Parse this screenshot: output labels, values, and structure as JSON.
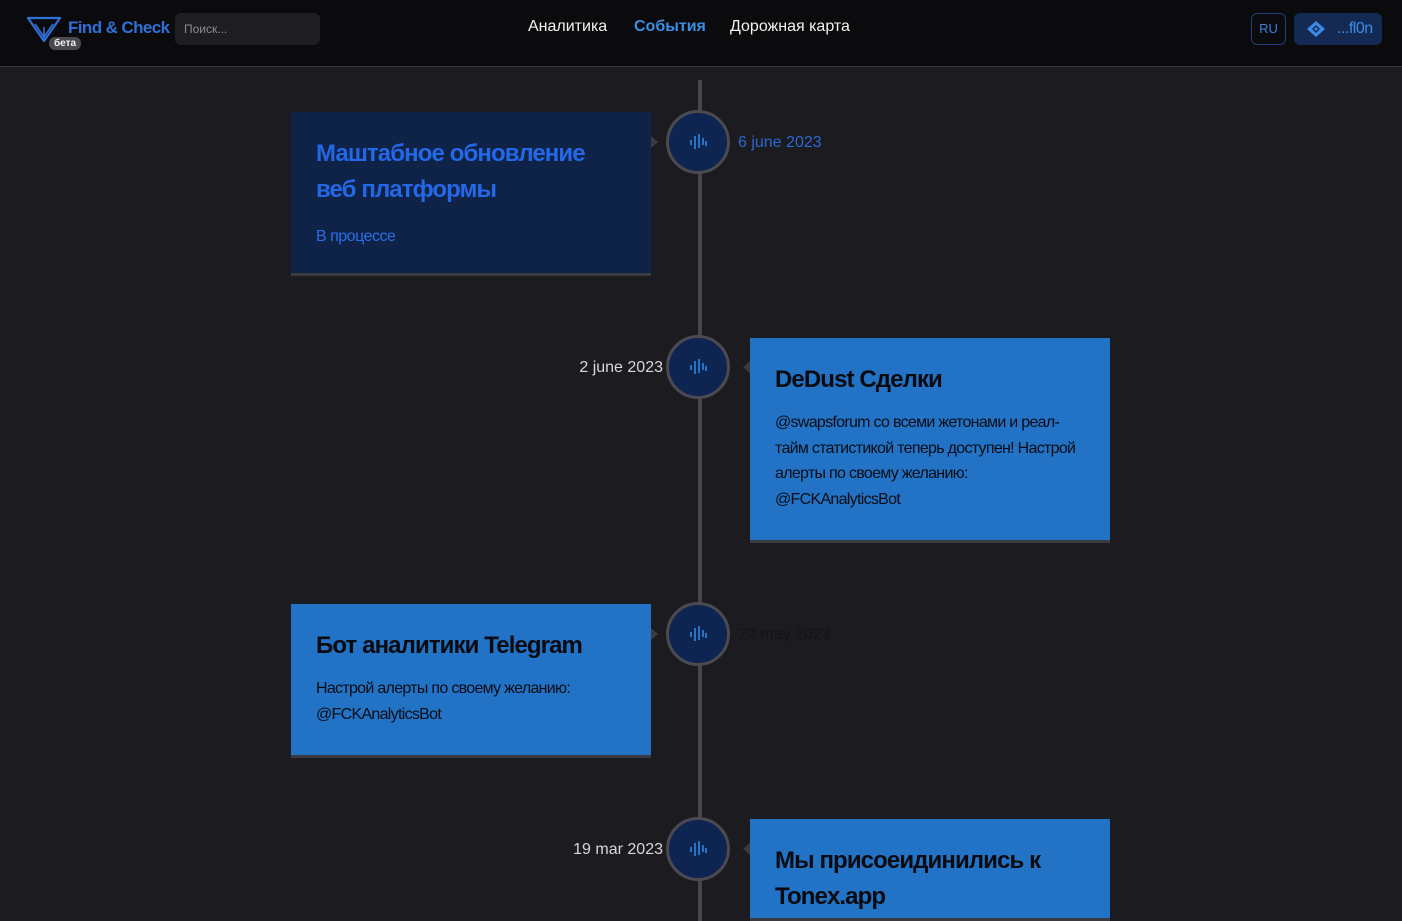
{
  "app": {
    "brand": "Find & Check",
    "beta": "бета",
    "search_placeholder": "Поиск..."
  },
  "nav": {
    "analytics": "Аналитика",
    "events": "События",
    "roadmap": "Дорожная карта"
  },
  "header_actions": {
    "language": "RU",
    "wallet_label": "...fl0n"
  },
  "colors": {
    "accent": "#3b8ee6",
    "card_blue": "#2272c6",
    "card_dark": "#0f2248",
    "background": "#1c1b20"
  },
  "events": [
    {
      "title": "Маштабное обновление веб платформы",
      "status": "В процессе",
      "date": "6 june 2023"
    },
    {
      "title": "DeDust Сделки",
      "body": "@swapsforum со всеми жетонами и реал-тайм статистикой теперь доступен! Настрой алерты по своему желанию: @FCKAnalyticsBot",
      "date": "2 june 2023"
    },
    {
      "title": "Бот аналитики Telegram",
      "body": "Настрой алерты по своему желанию: @FCKAnalyticsBot",
      "date": "22 may 2023"
    },
    {
      "title": "Мы присоеидинились к Tonex.app",
      "date": "19 mar 2023"
    }
  ]
}
